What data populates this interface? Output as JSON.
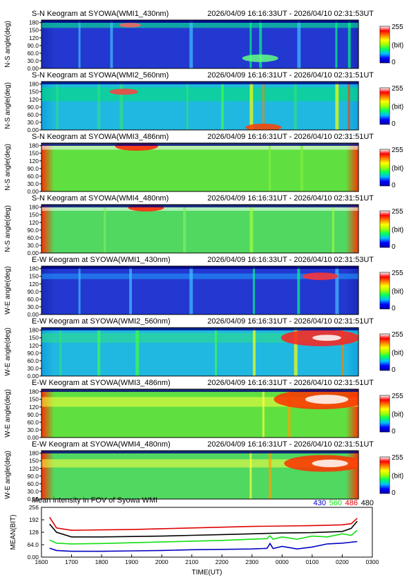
{
  "colorbar": {
    "max_label": "255",
    "unit_label": "(bit)",
    "min_label": "0",
    "stops": [
      "#0000b0",
      "#0000ff",
      "#00c0ff",
      "#00ff60",
      "#a0ff00",
      "#ffff00",
      "#ff8000",
      "#ff0000",
      "#ffffff"
    ]
  },
  "keograms": [
    {
      "title": "S-N Keogram at SYOWA(WMI1_430nm)",
      "range": "2026/04/09 16:16:33UT - 2026/04/10 02:31:53UT",
      "ylabel": "N-S angle(deg)",
      "yticks": [
        "0.00",
        "30.0",
        "60.0",
        "90.0",
        "120",
        "150",
        "180"
      ],
      "base": "#2238d0",
      "edge": "#1a2ab8",
      "ribbon": {
        "angle": 170,
        "width": 8,
        "color": "#00ff80"
      },
      "streaks": [
        {
          "t": 0.12,
          "c": "#40c0ff"
        },
        {
          "t": 0.22,
          "c": "#40c0ff"
        },
        {
          "t": 0.47,
          "c": "#40c0ff"
        },
        {
          "t": 0.66,
          "c": "#00ff80"
        },
        {
          "t": 0.69,
          "c": "#00ff80"
        },
        {
          "t": 0.81,
          "c": "#40c0ff"
        },
        {
          "t": 0.93,
          "c": "#00ff80"
        },
        {
          "t": 0.97,
          "c": "#00ff80"
        }
      ],
      "blobs": [
        {
          "t": 0.28,
          "a": 170,
          "c": "#ff6060",
          "r": 6
        },
        {
          "t": 0.69,
          "a": 40,
          "c": "#60ff80",
          "r": 10
        }
      ]
    },
    {
      "title": "S-N Keogram at SYOWA(WMI2_560nm)",
      "range": "2026/04/09 16:16:31UT - 2026/04/10 02:31:51UT",
      "ylabel": "N-S angle(deg)",
      "yticks": [
        "0.00",
        "30.0",
        "60.0",
        "90.0",
        "120",
        "150",
        "180"
      ],
      "base": "#20b8e0",
      "edge": "#10a0e0",
      "ribbon": {
        "angle": 140,
        "width": 20,
        "color": "#00e070"
      },
      "streaks": [
        {
          "t": 0.05,
          "c": "#30e080"
        },
        {
          "t": 0.18,
          "c": "#30e080"
        },
        {
          "t": 0.25,
          "c": "#30e080"
        },
        {
          "t": 0.46,
          "c": "#30e080"
        },
        {
          "t": 0.57,
          "c": "#40ff40"
        },
        {
          "t": 0.66,
          "c": "#ffff00"
        },
        {
          "t": 0.7,
          "c": "#ff8000"
        },
        {
          "t": 0.8,
          "c": "#30e080"
        },
        {
          "t": 0.93,
          "c": "#ffff00"
        },
        {
          "t": 0.97,
          "c": "#ff4000"
        }
      ],
      "blobs": [
        {
          "t": 0.26,
          "a": 150,
          "c": "#ff4040",
          "r": 8
        },
        {
          "t": 0.7,
          "a": 10,
          "c": "#ff4000",
          "r": 10
        }
      ]
    },
    {
      "title": "S-N Keogram at SYOWA(WMI3_486nm)",
      "range": "2026/04/09 16:16:31UT - 2026/04/10 02:31:51UT",
      "ylabel": "N-S angle(deg)",
      "yticks": [
        "0.00",
        "30.0",
        "60.0",
        "90.0",
        "120",
        "150",
        "180"
      ],
      "base": "#60e040",
      "edge": "#ff3000",
      "ribbon": {
        "angle": 175,
        "width": 8,
        "color": "#ffffff"
      },
      "streaks": [
        {
          "t": 0.72,
          "c": "#80f040"
        },
        {
          "t": 0.82,
          "c": "#80f040"
        }
      ],
      "blobs": [
        {
          "t": 0.3,
          "a": 178,
          "c": "#ff2000",
          "r": 12
        }
      ]
    },
    {
      "title": "S-N Keogram at SYOWA(WMI4_480nm)",
      "range": "2026/04/09 16:16:31UT - 2026/04/10 02:31:51UT",
      "ylabel": "N-S angle(deg)",
      "yticks": [
        "0.00",
        "30.0",
        "60.0",
        "90.0",
        "120",
        "150",
        "180"
      ],
      "base": "#50d860",
      "edge": "#ff3000",
      "ribbon": {
        "angle": 175,
        "width": 7,
        "color": "#ffffff"
      },
      "streaks": [
        {
          "t": 0.2,
          "c": "#80f060"
        },
        {
          "t": 0.45,
          "c": "#80f060"
        },
        {
          "t": 0.66,
          "c": "#a0ff40"
        },
        {
          "t": 0.92,
          "c": "#a0ff40"
        }
      ],
      "blobs": [
        {
          "t": 0.33,
          "a": 178,
          "c": "#ff2000",
          "r": 10
        }
      ]
    },
    {
      "title": "E-W Keogram at SYOWA(WMI1_430nm)",
      "range": "2026/04/09 16:16:33UT - 2026/04/10 02:31:53UT",
      "ylabel": "W-E angle(deg)",
      "yticks": [
        "0.00",
        "30.0",
        "60.0",
        "90.0",
        "120",
        "150",
        "180"
      ],
      "base": "#2238d0",
      "edge": "#1a2ab8",
      "ribbon": {
        "angle": 150,
        "width": 8,
        "color": "#20a0ff"
      },
      "streaks": [
        {
          "t": 0.12,
          "c": "#40c0ff"
        },
        {
          "t": 0.28,
          "c": "#40c0ff"
        },
        {
          "t": 0.47,
          "c": "#40c0ff"
        },
        {
          "t": 0.67,
          "c": "#00ff80"
        },
        {
          "t": 0.81,
          "c": "#00ff80"
        },
        {
          "t": 0.93,
          "c": "#40c0ff"
        }
      ],
      "blobs": [
        {
          "t": 0.88,
          "a": 150,
          "c": "#ff3030",
          "r": 10
        }
      ]
    },
    {
      "title": "E-W Keogram at SYOWA(WMI2_560nm)",
      "range": "2026/04/09 16:16:31UT - 2026/04/10 02:31:51UT",
      "ylabel": "W-E angle(deg)",
      "yticks": [
        "0.00",
        "30.0",
        "60.0",
        "90.0",
        "120",
        "150",
        "180"
      ],
      "base": "#20b8e0",
      "edge": "#10a0e0",
      "ribbon": {
        "angle": 150,
        "width": 14,
        "color": "#30e080"
      },
      "streaks": [
        {
          "t": 0.06,
          "c": "#30e080"
        },
        {
          "t": 0.18,
          "c": "#40ff40"
        },
        {
          "t": 0.3,
          "c": "#40ff40"
        },
        {
          "t": 0.55,
          "c": "#40ff40"
        },
        {
          "t": 0.67,
          "c": "#ffff00"
        },
        {
          "t": 0.8,
          "c": "#ffff00"
        },
        {
          "t": 0.95,
          "c": "#ff8000"
        }
      ],
      "blobs": [
        {
          "t": 0.88,
          "a": 150,
          "c": "#ff2020",
          "r": 22
        },
        {
          "t": 0.9,
          "a": 150,
          "c": "#ffffff",
          "r": 8
        }
      ]
    },
    {
      "title": "E-W Keogram at SYOWA(WMI3_486nm)",
      "range": "2026/04/09 16:16:31UT - 2026/04/10 02:31:51UT",
      "ylabel": "W-E angle(deg)",
      "yticks": [
        "0.00",
        "30.0",
        "60.0",
        "90.0",
        "120",
        "150",
        "180"
      ],
      "base": "#60e040",
      "edge": "#ff3000",
      "ribbon": {
        "angle": 140,
        "width": 14,
        "color": "#ffff40"
      },
      "streaks": [
        {
          "t": 0.7,
          "c": "#ffff40"
        },
        {
          "t": 0.78,
          "c": "#ffa000"
        }
      ],
      "blobs": [
        {
          "t": 0.88,
          "a": 150,
          "c": "#ff3000",
          "r": 26
        },
        {
          "t": 0.9,
          "a": 150,
          "c": "#ffffff",
          "r": 12
        }
      ]
    },
    {
      "title": "E-W Keogram at SYOWA(WMI4_480nm)",
      "range": "2026/04/09 16:16:31UT - 2026/04/10 02:31:51UT",
      "ylabel": "W-E angle(deg)",
      "yticks": [
        "0.00",
        "30.0",
        "60.0",
        "90.0",
        "120",
        "150",
        "180"
      ],
      "base": "#50d860",
      "edge": "#ff3000",
      "ribbon": {
        "angle": 140,
        "width": 12,
        "color": "#ffff40"
      },
      "streaks": [
        {
          "t": 0.66,
          "c": "#ffff40"
        },
        {
          "t": 0.72,
          "c": "#ffa000"
        }
      ],
      "blobs": [
        {
          "t": 0.89,
          "a": 140,
          "c": "#ff3000",
          "r": 22
        },
        {
          "t": 0.91,
          "a": 140,
          "c": "#ffffff",
          "r": 10
        }
      ]
    }
  ],
  "chart_data": {
    "type": "line",
    "title": "Mean intensity in FOV of Syowa WMI",
    "xlabel": "TIME(UT)",
    "ylabel": "MEAN(BIT)",
    "xticks": [
      "1600",
      "1700",
      "1800",
      "1900",
      "2000",
      "2100",
      "2200",
      "2300",
      "0000",
      "0100",
      "0200",
      "0300"
    ],
    "yticks": [
      "0.00",
      "64.0",
      "128",
      "192",
      "256"
    ],
    "xlim": [
      16.0,
      27.0
    ],
    "ylim": [
      0,
      256
    ],
    "series": [
      {
        "name": "430",
        "color": "#0000c0",
        "x": [
          16.27,
          16.5,
          17.0,
          18.0,
          19.0,
          20.0,
          21.0,
          22.0,
          23.0,
          23.5,
          23.6,
          23.7,
          24.0,
          24.5,
          25.0,
          25.5,
          26.0,
          26.5
        ],
        "y": [
          46,
          34,
          30,
          30,
          32,
          34,
          38,
          40,
          42,
          45,
          70,
          44,
          55,
          42,
          52,
          68,
          72,
          80
        ]
      },
      {
        "name": "560",
        "color": "#10e010",
        "x": [
          16.27,
          16.5,
          17.0,
          18.0,
          19.0,
          20.0,
          21.0,
          22.0,
          23.0,
          23.5,
          23.6,
          23.7,
          24.0,
          24.5,
          25.0,
          25.5,
          26.0,
          26.3,
          26.5
        ],
        "y": [
          88,
          72,
          68,
          70,
          74,
          78,
          82,
          86,
          92,
          95,
          110,
          92,
          104,
          92,
          108,
          104,
          120,
          112,
          138
        ]
      },
      {
        "name": "486",
        "color": "#e00000",
        "x": [
          16.27,
          16.5,
          17.0,
          18.0,
          19.0,
          20.0,
          21.0,
          22.0,
          23.0,
          24.0,
          25.0,
          26.0,
          26.3,
          26.5
        ],
        "y": [
          205,
          150,
          138,
          140,
          142,
          146,
          150,
          154,
          158,
          160,
          162,
          166,
          172,
          200
        ]
      },
      {
        "name": "480",
        "color": "#000000",
        "x": [
          16.27,
          16.5,
          17.0,
          18.0,
          19.0,
          20.0,
          21.0,
          22.0,
          23.0,
          24.0,
          25.0,
          26.0,
          26.3,
          26.5
        ],
        "y": [
          170,
          128,
          104,
          104,
          106,
          108,
          112,
          116,
          120,
          124,
          126,
          132,
          148,
          185
        ]
      }
    ]
  }
}
